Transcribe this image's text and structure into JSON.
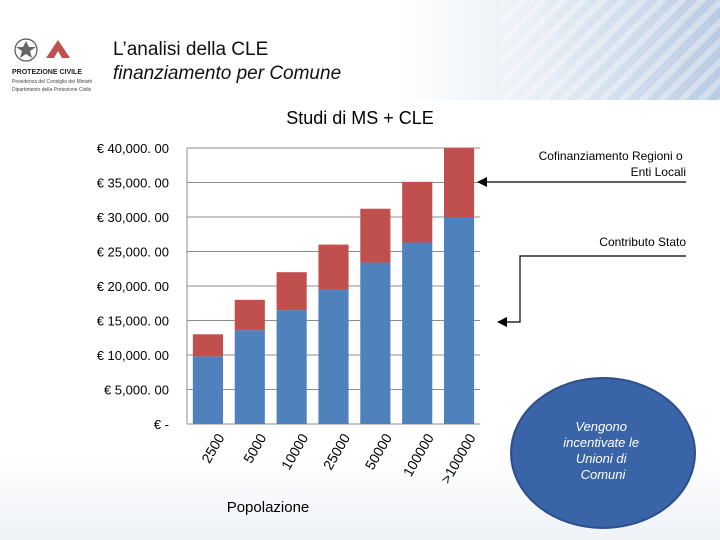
{
  "header": {
    "title_line1": "L’analisi della CLE",
    "title_line2": "finanziamento per Comune",
    "logo_text": {
      "org": "PROTEZIONE CIVILE",
      "sub1": "Presidenza del Consiglio dei Ministri",
      "sub2": "Dipartimento della Protezione Civile"
    }
  },
  "colors": {
    "stato": "#4f81bd",
    "regioni": "#c0504d",
    "ellipse": "#3a64a8",
    "ellipse_border": "#2c4f8a"
  },
  "chart_data": {
    "type": "bar",
    "stacked": true,
    "title": "Studi di MS + CLE",
    "xlabel": "Popolazione",
    "ylabel": "",
    "categories": [
      "2500",
      "5000",
      "10000",
      "25000",
      "50000",
      "100000",
      ">100000"
    ],
    "series": [
      {
        "name": "Contributo Stato",
        "values": [
          9800,
          13600,
          16500,
          19500,
          23400,
          26300,
          30000
        ]
      },
      {
        "name": "Cofinanziamento Regioni o Enti Locali",
        "values": [
          3200,
          4400,
          5500,
          6500,
          7800,
          8800,
          10000
        ]
      }
    ],
    "ylim": [
      0,
      40000
    ],
    "yticks": [
      0,
      5000,
      10000,
      15000,
      20000,
      25000,
      30000,
      35000,
      40000
    ],
    "ytick_labels": [
      "€ -",
      "€  5,000. 00",
      "€  10,000. 00",
      "€  15,000. 00",
      "€  20,000. 00",
      "€  25,000. 00",
      "€  30,000. 00",
      "€  35,000. 00",
      "€  40,000. 00"
    ],
    "grid": true,
    "annotations": {
      "cofinanziamento": "Cofinanziamento Regioni o Enti Locali",
      "contributo": "Contributo Stato"
    }
  },
  "callout": {
    "lines": [
      "Vengono",
      "incentivate le",
      "Unioni di",
      "Comuni"
    ]
  }
}
